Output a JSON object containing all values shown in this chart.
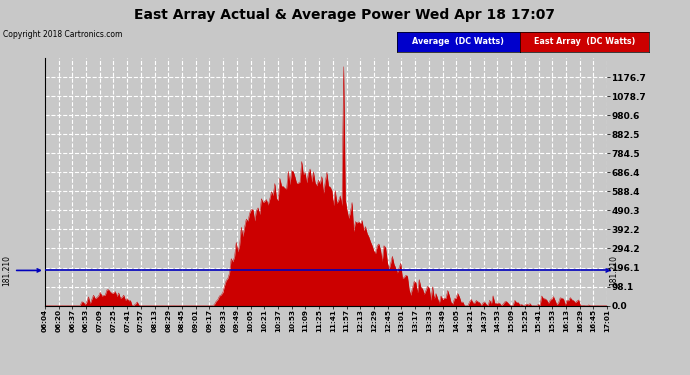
{
  "title": "East Array Actual & Average Power Wed Apr 18 17:07",
  "copyright": "Copyright 2018 Cartronics.com",
  "average_value": 181.21,
  "ymax": 1274.0,
  "ymin": 0.0,
  "yticks_right": [
    0.0,
    98.1,
    196.1,
    294.2,
    392.2,
    490.3,
    588.4,
    686.4,
    784.5,
    882.5,
    980.6,
    1078.7,
    1176.7
  ],
  "background_color": "#c8c8c8",
  "fill_color": "#cc0000",
  "line_color": "#0000bb",
  "legend_avg_bg": "#0000cc",
  "legend_east_bg": "#cc0000",
  "title_fontsize": 10,
  "xtick_labels": [
    "06:04",
    "06:20",
    "06:37",
    "06:53",
    "07:09",
    "07:25",
    "07:41",
    "07:57",
    "08:13",
    "08:29",
    "08:45",
    "09:01",
    "09:17",
    "09:33",
    "09:49",
    "10:05",
    "10:21",
    "10:37",
    "10:53",
    "11:09",
    "11:25",
    "11:41",
    "11:57",
    "12:13",
    "12:29",
    "12:45",
    "13:01",
    "13:17",
    "13:33",
    "13:49",
    "14:05",
    "14:21",
    "14:37",
    "14:53",
    "15:09",
    "15:25",
    "15:41",
    "15:53",
    "16:13",
    "16:29",
    "16:45",
    "17:01"
  ]
}
